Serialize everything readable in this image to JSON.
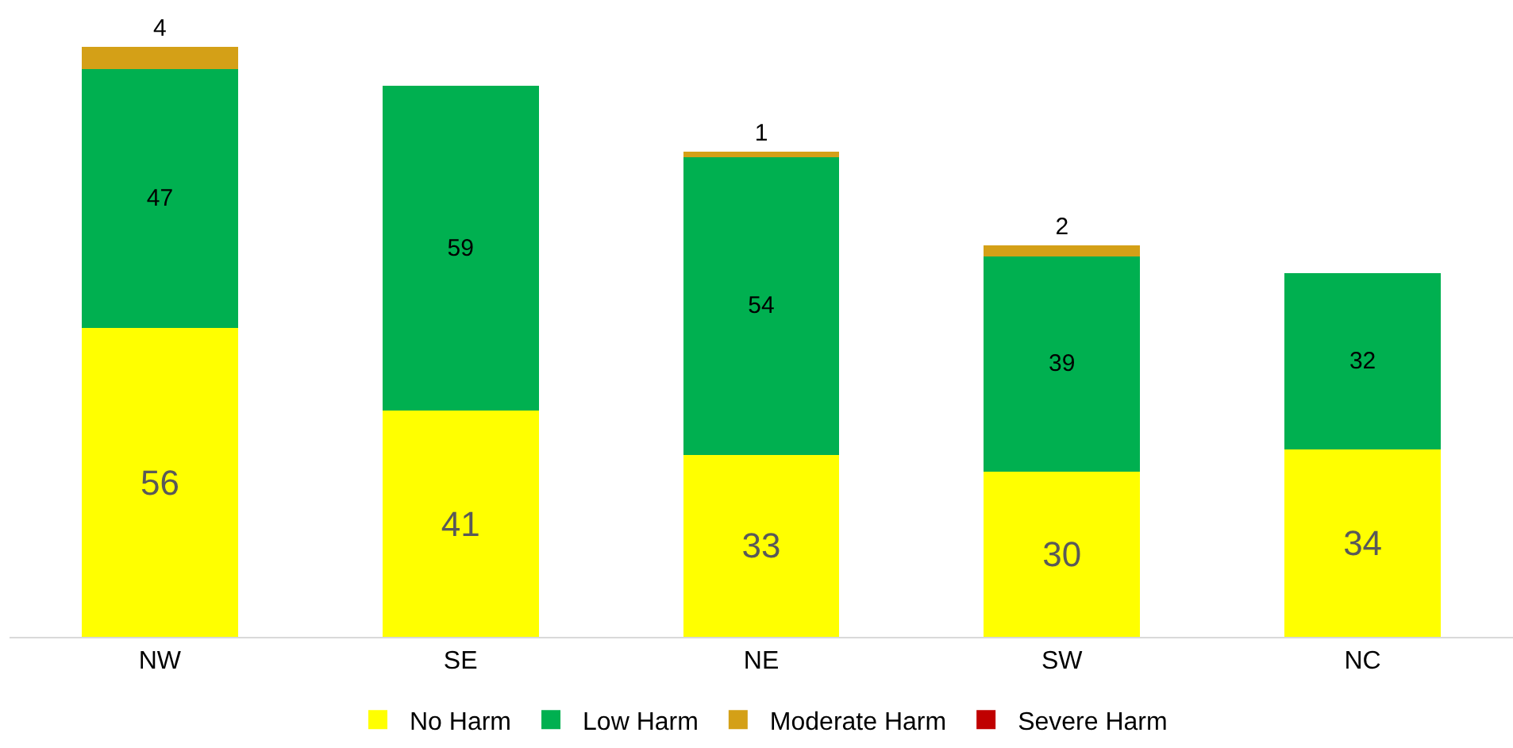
{
  "chart_data": {
    "type": "bar",
    "stacked": true,
    "categories": [
      "NW",
      "SE",
      "NE",
      "SW",
      "NC"
    ],
    "series": [
      {
        "name": "No Harm",
        "color": "#ffff00",
        "values": [
          56,
          41,
          33,
          30,
          34
        ]
      },
      {
        "name": "Low Harm",
        "color": "#00b050",
        "values": [
          47,
          59,
          54,
          39,
          32
        ]
      },
      {
        "name": "Moderate Harm",
        "color": "#d4a017",
        "values": [
          4,
          null,
          1,
          2,
          null
        ]
      },
      {
        "name": "Severe Harm",
        "color": "#c00000",
        "values": [
          null,
          null,
          null,
          null,
          null
        ]
      }
    ],
    "data_labels": true,
    "legend": "bottom",
    "grid": false,
    "tick_labels": "x"
  }
}
